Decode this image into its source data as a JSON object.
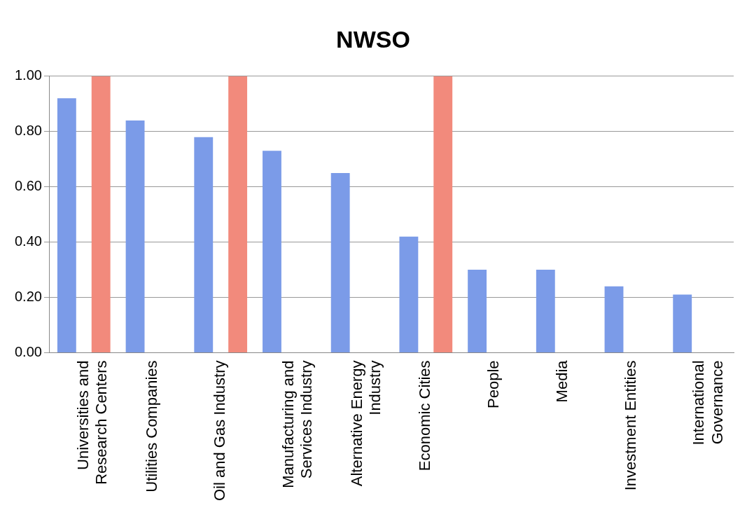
{
  "chart_data": {
    "type": "bar",
    "title": "NWSO",
    "categories": [
      "Universities and Research Centers",
      "Utilities Companies",
      "Oil and Gas Industry",
      "Manufacturing and Services Industry",
      "Alternative Energy Industry",
      "Economic Cities",
      "People",
      "Media",
      "Investment Entities",
      "International Governance"
    ],
    "series": [
      {
        "color": "#7b9be8",
        "values": [
          0.92,
          0.84,
          0.78,
          0.73,
          0.65,
          0.42,
          0.3,
          0.3,
          0.24,
          0.21
        ]
      },
      {
        "color": "#f28a7c",
        "values": [
          1.0,
          null,
          1.0,
          null,
          null,
          1.0,
          null,
          null,
          null,
          null
        ]
      }
    ],
    "ylim": [
      0,
      1
    ],
    "yticks": [
      {
        "value": 0,
        "label": "0.00"
      },
      {
        "value": 0.2,
        "label": "0.20"
      },
      {
        "value": 0.4,
        "label": "0.40"
      },
      {
        "value": 0.6,
        "label": "0.60"
      },
      {
        "value": 0.8,
        "label": "0.80"
      },
      {
        "value": 1,
        "label": "1.00"
      }
    ],
    "grid": "y",
    "legend": false
  }
}
